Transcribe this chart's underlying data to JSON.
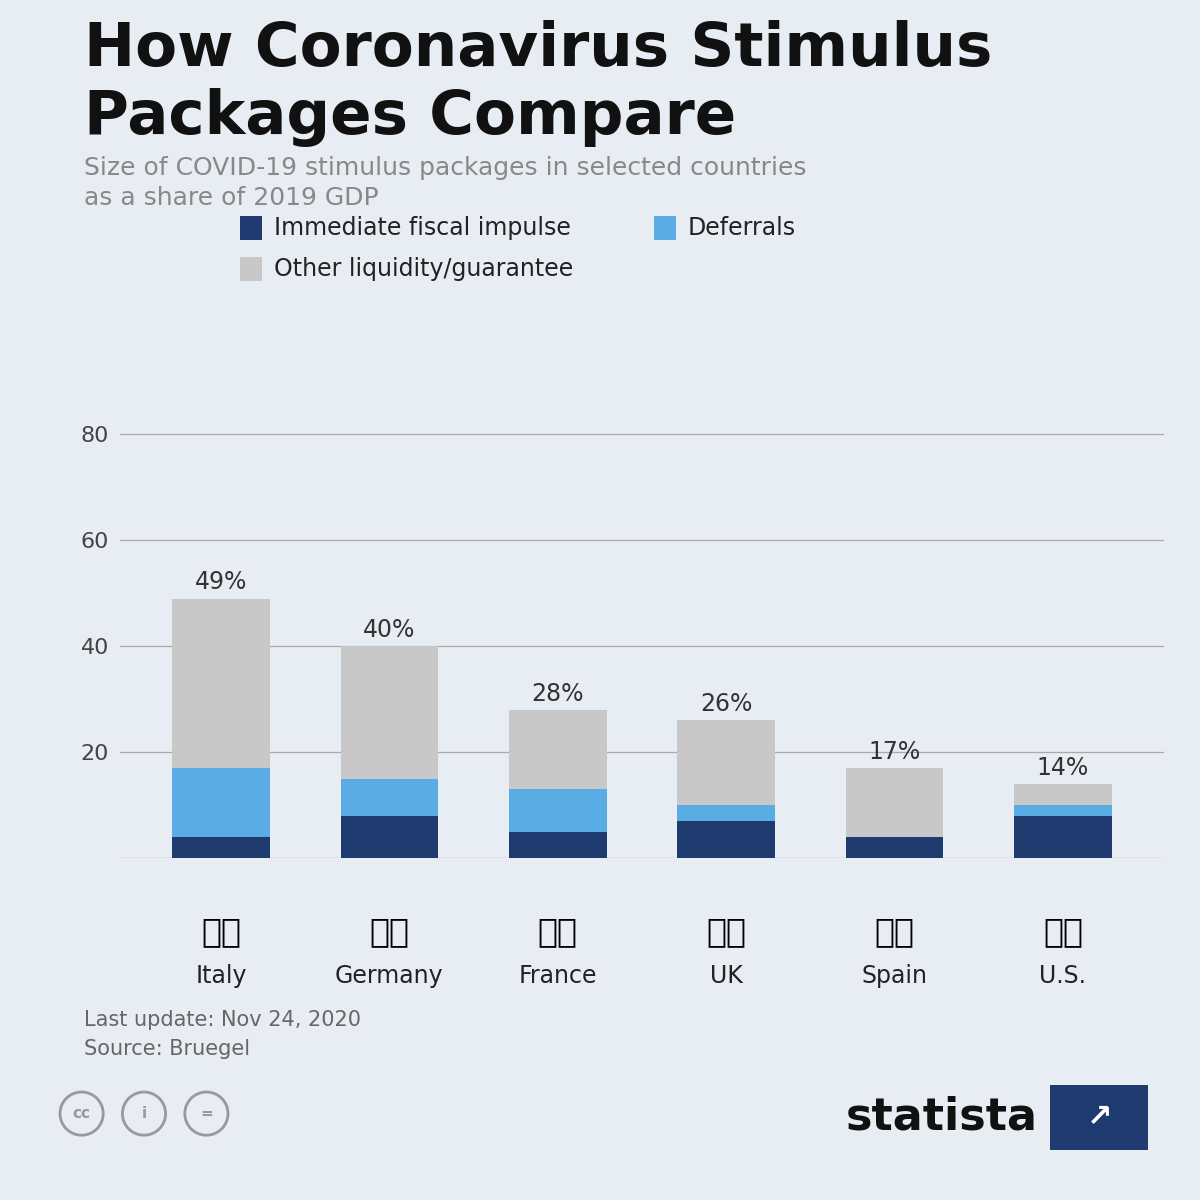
{
  "title_line1": "How Coronavirus Stimulus",
  "title_line2": "Packages Compare",
  "subtitle_line1": "Size of COVID-19 stimulus packages in selected countries",
  "subtitle_line2": "as a share of 2019 GDP",
  "countries": [
    "Italy",
    "Germany",
    "France",
    "UK",
    "Spain",
    "U.S."
  ],
  "totals": [
    "49%",
    "40%",
    "28%",
    "26%",
    "17%",
    "14%"
  ],
  "fiscal": [
    4,
    8,
    5,
    7,
    4,
    8
  ],
  "deferrals": [
    13,
    7,
    8,
    3,
    0,
    2
  ],
  "liquidity": [
    32,
    25,
    15,
    16,
    13,
    4
  ],
  "color_fiscal": "#1e3a6e",
  "color_deferrals": "#5aace4",
  "color_liquidity": "#c8c8c8",
  "background_color": "#e8edf3",
  "bar_width": 0.58,
  "ylim": [
    0,
    85
  ],
  "yticks": [
    0,
    20,
    40,
    60,
    80
  ],
  "accent_color": "#1e3a6e",
  "title_color": "#111111",
  "subtitle_color": "#888888",
  "grid_color": "#aaaaaa",
  "footer_text1": "Last update: Nov 24, 2020",
  "footer_text2": "Source: Bruegel",
  "legend_items": [
    "Immediate fiscal impulse",
    "Deferrals",
    "Other liquidity/guarantee"
  ]
}
